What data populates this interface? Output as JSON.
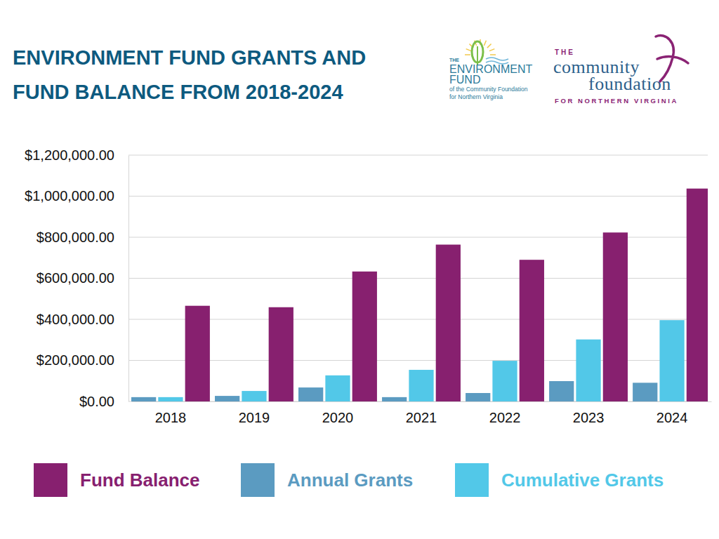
{
  "chart_data": {
    "type": "bar",
    "title": "ENVIRONMENT FUND GRANTS AND FUND BALANCE FROM 2018-2024",
    "categories": [
      "2018",
      "2019",
      "2020",
      "2021",
      "2022",
      "2023",
      "2024"
    ],
    "series": [
      {
        "name": "Fund Balance",
        "color": "#87206f",
        "values": [
          466000,
          459000,
          633000,
          764000,
          690000,
          823000,
          1037000
        ]
      },
      {
        "name": "Annual Grants",
        "color": "#5b9bc1",
        "values": [
          21000,
          27000,
          68000,
          21000,
          41000,
          99000,
          91000
        ]
      },
      {
        "name": "Cumulative Grants",
        "color": "#52c8e8",
        "values": [
          21000,
          51000,
          127000,
          154000,
          198000,
          302000,
          396000
        ]
      }
    ],
    "ylim": [
      0,
      1200000
    ],
    "yticks": [
      {
        "value": 0,
        "label": "$0.00"
      },
      {
        "value": 200000,
        "label": "$200,000.00"
      },
      {
        "value": 400000,
        "label": "$400,000.00"
      },
      {
        "value": 600000,
        "label": "$600,000.00"
      },
      {
        "value": 800000,
        "label": "$800,000.00"
      },
      {
        "value": 1000000,
        "label": "$1,000,000.00"
      },
      {
        "value": 1200000,
        "label": "$1,200,000.00"
      }
    ],
    "grid": true,
    "legend": "bottom"
  },
  "logos": {
    "environment_fund": [
      "THE",
      "ENVIRONMENT",
      "FUND",
      "of the Community Foundation",
      "for Northern Virginia"
    ],
    "community_foundation": [
      "THE",
      "community",
      "foundation",
      "FOR NORTHERN VIRGINIA"
    ]
  }
}
